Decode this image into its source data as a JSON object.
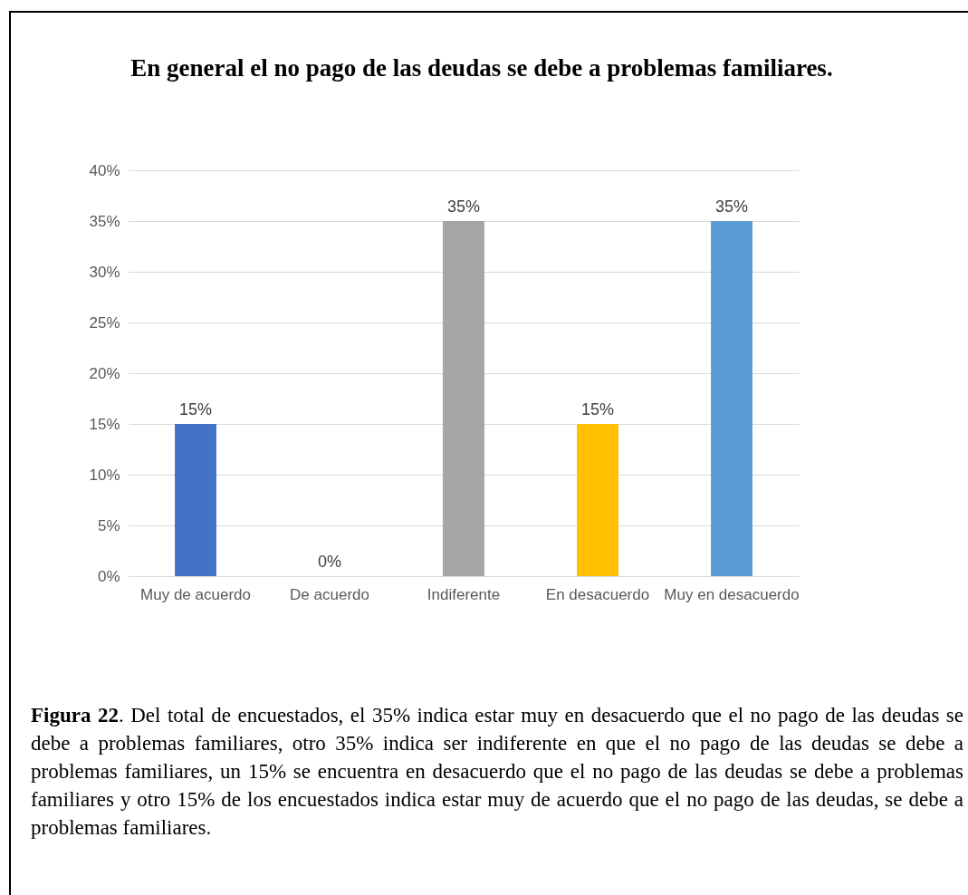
{
  "chart_data": {
    "type": "bar",
    "title": "En general el no pago de las deudas se debe a problemas familiares.",
    "categories": [
      "Muy de acuerdo",
      "De acuerdo",
      "Indiferente",
      "En desacuerdo",
      "Muy en desacuerdo"
    ],
    "values": [
      15,
      0,
      35,
      15,
      35
    ],
    "colors": [
      "#4472c4",
      "#ed7d31",
      "#a5a5a5",
      "#ffc000",
      "#5b9bd5"
    ],
    "value_labels": [
      "15%",
      "0%",
      "35%",
      "15%",
      "35%"
    ],
    "ylim": [
      0,
      40
    ],
    "yticks": [
      {
        "value": 0,
        "label": "0%"
      },
      {
        "value": 5,
        "label": "5%"
      },
      {
        "value": 10,
        "label": "10%"
      },
      {
        "value": 15,
        "label": "15%"
      },
      {
        "value": 20,
        "label": "20%"
      },
      {
        "value": 25,
        "label": "25%"
      },
      {
        "value": 30,
        "label": "30%"
      },
      {
        "value": 35,
        "label": "35%"
      },
      {
        "value": 40,
        "label": "40%"
      }
    ],
    "grid": "y",
    "annotations": [
      "Figura 22. Del total de encuestados, el 35% indica estar muy en desacuerdo que el no pago de las deudas se debe a problemas familiares, otro 35% indica ser indiferente en que el no pago de las deudas se debe a problemas familiares, un 15% se encuentra en desacuerdo que el no pago de las deudas se debe a problemas familiares y otro 15% de los encuestados indica estar muy de acuerdo que el no pago de las deudas, se debe a problemas familiares."
    ]
  }
}
